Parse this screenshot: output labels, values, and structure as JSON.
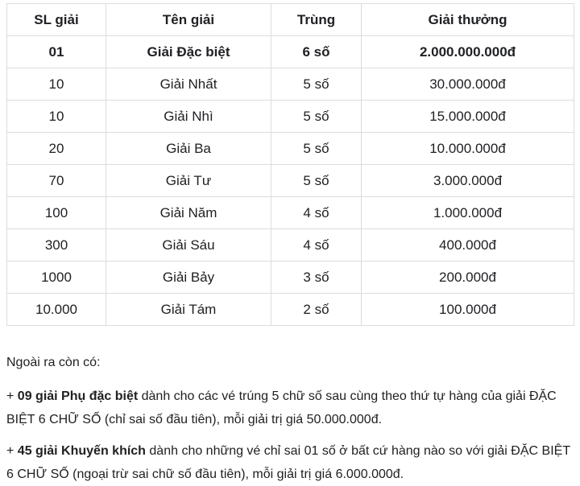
{
  "table": {
    "headers": [
      "SL giải",
      "Tên giải",
      "Trùng",
      "Giải thưởng"
    ],
    "rows": [
      {
        "quantity": "01",
        "name": "Giải Đặc biệt",
        "match": "6 số",
        "prize": "2.000.000.000đ",
        "emphasis": true
      },
      {
        "quantity": "10",
        "name": "Giải Nhất",
        "match": "5 số",
        "prize": "30.000.000đ",
        "emphasis": false
      },
      {
        "quantity": "10",
        "name": "Giải Nhì",
        "match": "5 số",
        "prize": "15.000.000đ",
        "emphasis": false
      },
      {
        "quantity": "20",
        "name": "Giải Ba",
        "match": "5 số",
        "prize": "10.000.000đ",
        "emphasis": false
      },
      {
        "quantity": "70",
        "name": "Giải Tư",
        "match": "5 số",
        "prize": "3.000.000đ",
        "emphasis": false
      },
      {
        "quantity": "100",
        "name": "Giải Năm",
        "match": "4 số",
        "prize": "1.000.000đ",
        "emphasis": false
      },
      {
        "quantity": "300",
        "name": "Giải Sáu",
        "match": "4 số",
        "prize": "400.000đ",
        "emphasis": false
      },
      {
        "quantity": "1000",
        "name": "Giải Bảy",
        "match": "3 số",
        "prize": "200.000đ",
        "emphasis": false
      },
      {
        "quantity": "10.000",
        "name": "Giải Tám",
        "match": "2 số",
        "prize": "100.000đ",
        "emphasis": false
      }
    ]
  },
  "notes": {
    "intro": "Ngoài ra còn có:",
    "items": [
      {
        "prefix": "+ ",
        "bold": "09 giải Phụ đặc biệt",
        "rest": " dành cho các vé trúng 5 chữ số sau cùng theo thứ tự hàng của giải ĐẶC BIỆT 6 CHỮ SỐ (chỉ sai số đầu tiên), mỗi giải trị giá 50.000.000đ."
      },
      {
        "prefix": "+ ",
        "bold": "45 giải Khuyến khích",
        "rest": " dành cho những vé chỉ sai 01 số ở bất cứ hàng nào so với giải ĐẶC BIỆT 6 CHỮ SỐ (ngoại trừ sai chữ số đầu tiên), mỗi giải trị giá 6.000.000đ."
      }
    ]
  },
  "colors": {
    "background": "#ffffff",
    "table_border": "#dadce0",
    "text": "#202124"
  }
}
